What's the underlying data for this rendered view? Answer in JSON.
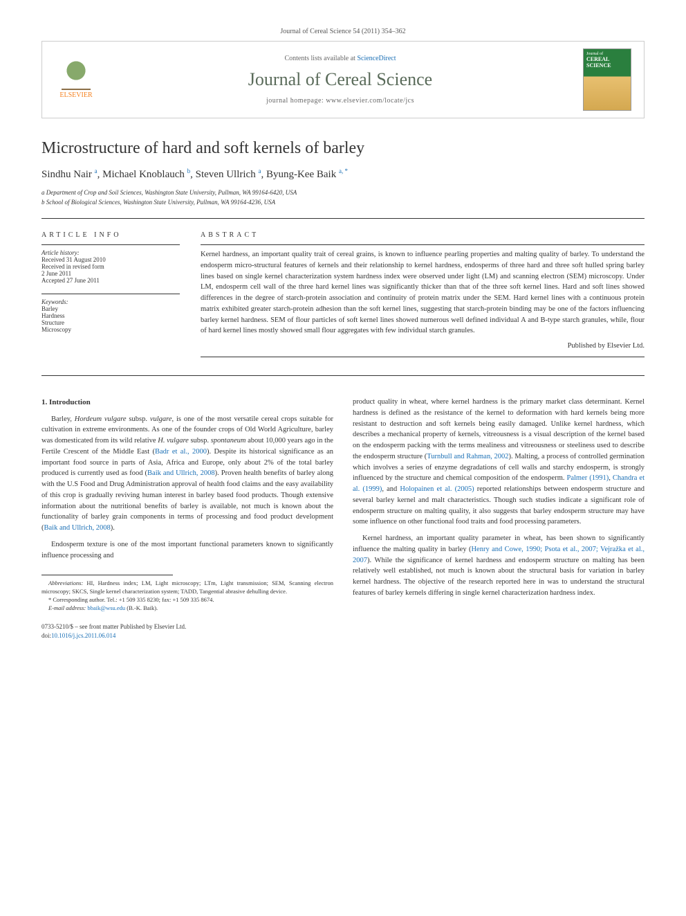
{
  "citation": "Journal of Cereal Science 54 (2011) 354–362",
  "header": {
    "publisher_name": "ELSEVIER",
    "contents_prefix": "Contents lists available at ",
    "contents_link": "ScienceDirect",
    "journal_name": "Journal of Cereal Science",
    "homepage_prefix": "journal homepage: ",
    "homepage_url": "www.elsevier.com/locate/jcs",
    "cover_text_top": "Journal of",
    "cover_text_main": "CEREAL SCIENCE"
  },
  "title": "Microstructure of hard and soft kernels of barley",
  "authors_html": "Sindhu Nair <sup>a</sup>, Michael Knoblauch <sup>b</sup>, Steven Ullrich <sup>a</sup>, Byung-Kee Baik <sup>a, *</sup>",
  "affiliations": [
    "a Department of Crop and Soil Sciences, Washington State University, Pullman, WA 99164-6420, USA",
    "b School of Biological Sciences, Washington State University, Pullman, WA 99164-4236, USA"
  ],
  "article_info": {
    "heading": "ARTICLE INFO",
    "history_label": "Article history:",
    "history": [
      "Received 31 August 2010",
      "Received in revised form",
      "2 June 2011",
      "Accepted 27 June 2011"
    ],
    "keywords_label": "Keywords:",
    "keywords": [
      "Barley",
      "Hardness",
      "Structure",
      "Microscopy"
    ]
  },
  "abstract": {
    "heading": "ABSTRACT",
    "text": "Kernel hardness, an important quality trait of cereal grains, is known to influence pearling properties and malting quality of barley. To understand the endosperm micro-structural features of kernels and their relationship to kernel hardness, endosperms of three hard and three soft hulled spring barley lines based on single kernel characterization system hardness index were observed under light (LM) and scanning electron (SEM) microscopy. Under LM, endosperm cell wall of the three hard kernel lines was significantly thicker than that of the three soft kernel lines. Hard and soft lines showed differences in the degree of starch-protein association and continuity of protein matrix under the SEM. Hard kernel lines with a continuous protein matrix exhibited greater starch-protein adhesion than the soft kernel lines, suggesting that starch-protein binding may be one of the factors influencing barley kernel hardness. SEM of flour particles of soft kernel lines showed numerous well defined individual A and B-type starch granules, while, flour of hard kernel lines mostly showed small flour aggregates with few individual starch granules.",
    "published": "Published by Elsevier Ltd."
  },
  "body": {
    "intro_heading": "1.  Introduction",
    "left_paras": [
      "Barley, <span class=\"ital\">Hordeum vulgare</span> subsp. <span class=\"ital\">vulgare</span>, is one of the most versatile cereal crops suitable for cultivation in extreme environments. As one of the founder crops of Old World Agriculture, barley was domesticated from its wild relative <span class=\"ital\">H. vulgare</span> subsp. <span class=\"ital\">spontaneum</span> about 10,000 years ago in the Fertile Crescent of the Middle East (<span class=\"ref-link\">Badr et al., 2000</span>). Despite its historical significance as an important food source in parts of Asia, Africa and Europe, only about 2% of the total barley produced is currently used as food (<span class=\"ref-link\">Baik and Ullrich, 2008</span>). Proven health benefits of barley along with the U.S Food and Drug Administration approval of health food claims and the easy availability of this crop is gradually reviving human interest in barley based food products. Though extensive information about the nutritional benefits of barley is available, not much is known about the functionality of barley grain components in terms of processing and food product development (<span class=\"ref-link\">Baik and Ullrich, 2008</span>).",
      "Endosperm texture is one of the most important functional parameters known to significantly influence processing and"
    ],
    "right_paras": [
      "product quality in wheat, where kernel hardness is the primary market class determinant. Kernel hardness is defined as the resistance of the kernel to deformation with hard kernels being more resistant to destruction and soft kernels being easily damaged. Unlike kernel hardness, which describes a mechanical property of kernels, vitreousness is a visual description of the kernel based on the endosperm packing with the terms mealiness and vitreousness or steeliness used to describe the endosperm structure (<span class=\"ref-link\">Turnbull and Rahman, 2002</span>). Malting, a process of controlled germination which involves a series of enzyme degradations of cell walls and starchy endosperm, is strongly influenced by the structure and chemical composition of the endosperm. <span class=\"ref-link\">Palmer (1991)</span>, <span class=\"ref-link\">Chandra et al. (1999)</span>, and <span class=\"ref-link\">Holopainen et al. (2005)</span> reported relationships between endosperm structure and several barley kernel and malt characteristics. Though such studies indicate a significant role of endosperm structure on malting quality, it also suggests that barley endosperm structure may have some influence on other functional food traits and food processing parameters.",
      "Kernel hardness, an important quality parameter in wheat, has been shown to significantly influence the malting quality in barley (<span class=\"ref-link\">Henry and Cowe, 1990; Psota et al., 2007; Vejražka et al., 2007</span>). While the significance of kernel hardness and endosperm structure on malting has been relatively well established, not much is known about the structural basis for variation in barley kernel hardness. The objective of the research reported here in was to understand the structural features of barley kernels differing in single kernel characterization hardness index."
    ]
  },
  "footnotes": {
    "abbrev_label": "Abbreviations:",
    "abbrev_text": " HI, Hardness index; LM, Light microscopy; LTm, Light transmission; SEM, Scanning electron microscopy; SKCS, Single kernel characterization system; TADD, Tangential abrasive dehulling device.",
    "corr_label": "* Corresponding author. ",
    "corr_text": "Tel.: +1 509 335 8230; fax: +1 509 335 8674.",
    "email_label": "E-mail address: ",
    "email": "bbaik@wsu.edu",
    "email_suffix": " (B.-K. Baik)."
  },
  "doi": {
    "copyright": "0733-5210/$ – see front matter Published by Elsevier Ltd.",
    "doi_prefix": "doi:",
    "doi": "10.1016/j.jcs.2011.06.014"
  },
  "colors": {
    "link": "#1a6fb5",
    "publisher": "#f58220",
    "journal_title": "#5a6b5a"
  }
}
